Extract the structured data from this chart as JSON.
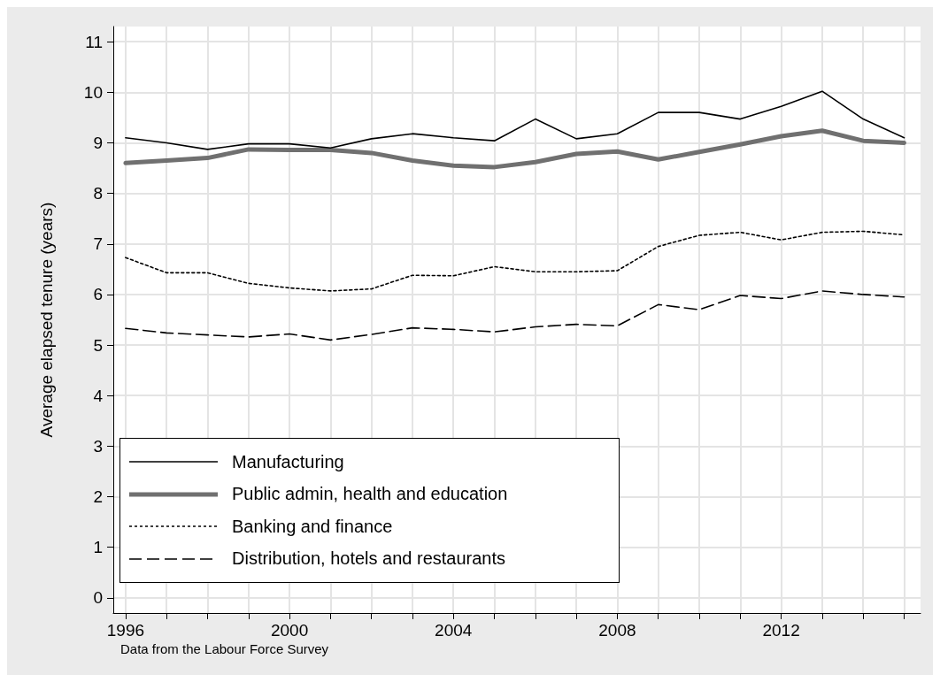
{
  "chart_data": {
    "type": "line",
    "ylabel": "Average elapsed tenure (years)",
    "annotations": [
      "Data from the Labour Force Survey"
    ],
    "x": [
      1996,
      1997,
      1998,
      1999,
      2000,
      2001,
      2002,
      2003,
      2004,
      2005,
      2006,
      2007,
      2008,
      2009,
      2010,
      2011,
      2012,
      2013,
      2014,
      2015
    ],
    "xlim": [
      1995.7,
      2015.4
    ],
    "xticks": [
      1996,
      2000,
      2004,
      2008,
      2012
    ],
    "ylim": [
      -0.3,
      11.3
    ],
    "yticks": [
      0,
      1,
      2,
      3,
      4,
      5,
      6,
      7,
      8,
      9,
      10,
      11
    ],
    "grid": true,
    "legend": "bottom left",
    "marker": "none",
    "series": [
      {
        "name": "Manufacturing",
        "color": "#000000",
        "line_style": "solid",
        "values": [
          9.1,
          9.0,
          8.87,
          8.98,
          8.98,
          8.9,
          9.08,
          9.18,
          9.1,
          9.04,
          9.47,
          9.08,
          9.18,
          9.6,
          9.6,
          9.47,
          9.72,
          10.02,
          9.47,
          9.1
        ]
      },
      {
        "name": "Public admin, health and education",
        "color": "#707070",
        "line_style": "solid",
        "values": [
          8.6,
          8.65,
          8.7,
          8.87,
          8.86,
          8.86,
          8.8,
          8.65,
          8.55,
          8.52,
          8.62,
          8.78,
          8.83,
          8.67,
          8.82,
          8.97,
          9.13,
          9.24,
          9.04,
          9.0
        ]
      },
      {
        "name": "Banking and finance",
        "color": "#000000",
        "line_style": "dotted",
        "values": [
          6.73,
          6.43,
          6.43,
          6.22,
          6.13,
          6.07,
          6.11,
          6.38,
          6.37,
          6.55,
          6.45,
          6.45,
          6.47,
          6.95,
          7.17,
          7.23,
          7.08,
          7.23,
          7.25,
          7.18
        ]
      },
      {
        "name": "Distribution, hotels and restaurants",
        "color": "#000000",
        "line_style": "dashed",
        "values": [
          5.33,
          5.24,
          5.2,
          5.16,
          5.22,
          5.1,
          5.21,
          5.34,
          5.31,
          5.26,
          5.36,
          5.41,
          5.38,
          5.8,
          5.7,
          5.98,
          5.92,
          6.07,
          6.0,
          5.95
        ]
      }
    ]
  }
}
